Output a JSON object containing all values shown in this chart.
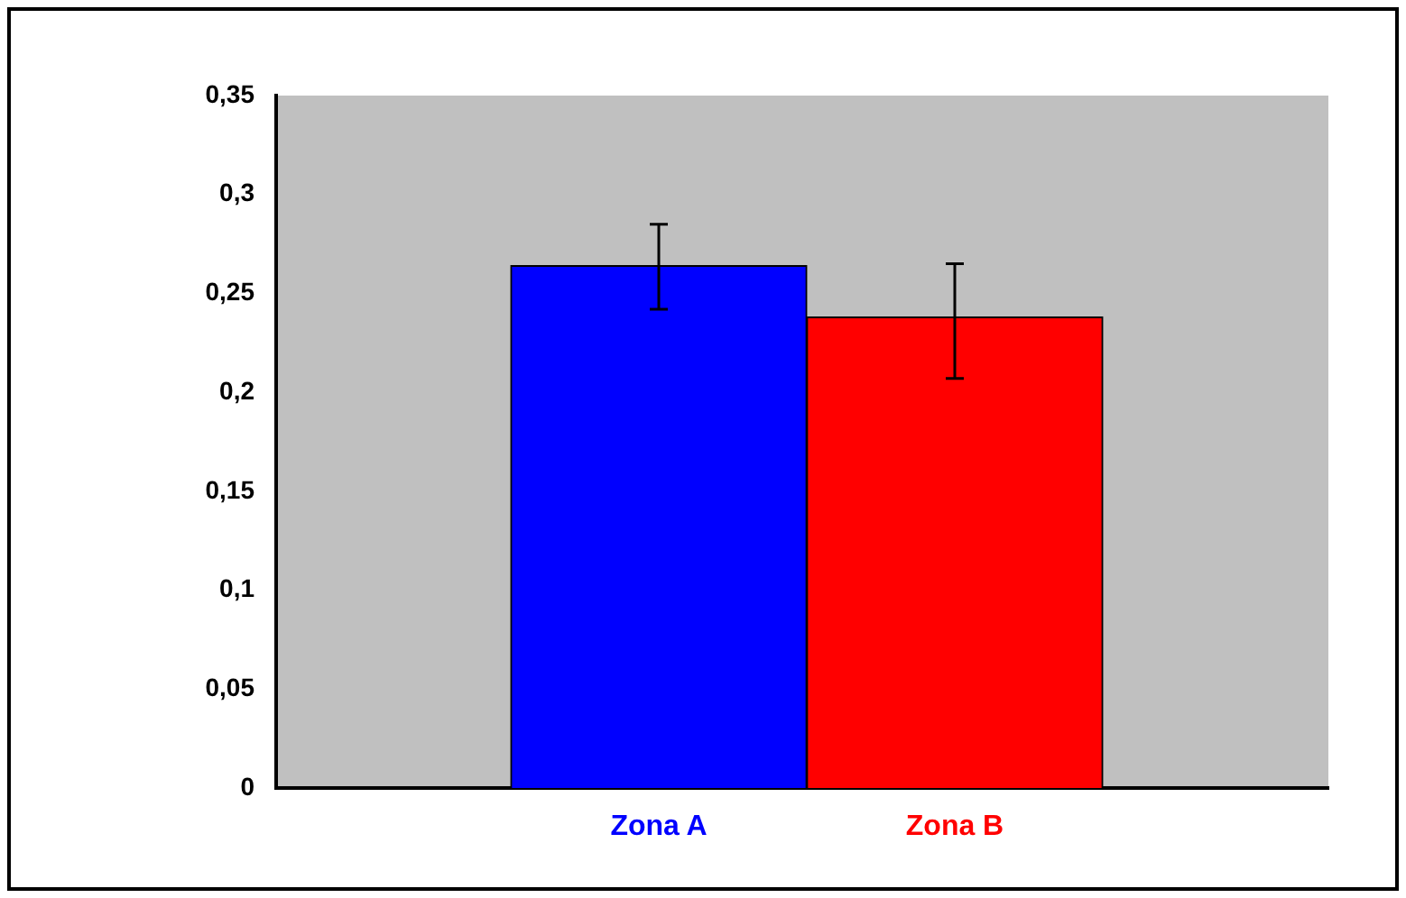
{
  "chart_data": {
    "type": "bar",
    "categories": [
      "Zona A",
      "Zona B"
    ],
    "values": [
      0.264,
      0.238
    ],
    "colors": [
      "#0000ff",
      "#ff0000"
    ],
    "errors": [
      [
        0.242,
        0.285
      ],
      [
        0.207,
        0.265
      ]
    ],
    "ylim": [
      0,
      0.35
    ],
    "yticks": [
      0,
      {
        "value": 0.05,
        "label": "0,05"
      },
      {
        "value": 0.1,
        "label": "0,1"
      },
      {
        "value": 0.15,
        "label": "0,15"
      },
      {
        "value": 0.2,
        "label": "0,2"
      },
      {
        "value": 0.25,
        "label": "0,25"
      },
      {
        "value": 0.3,
        "label": "0,3"
      },
      {
        "value": 0.35,
        "label": "0,35"
      }
    ],
    "grid": false,
    "legend": false
  }
}
